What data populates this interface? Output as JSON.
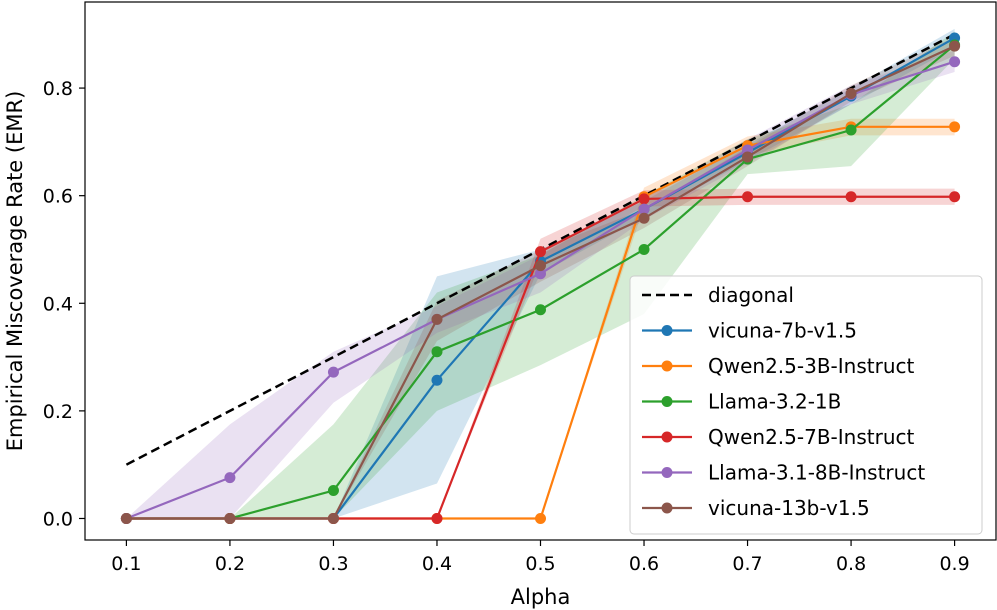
{
  "chart_data": {
    "type": "line",
    "title": "",
    "xlabel": "Alpha",
    "ylabel": "Empirical Miscoverage Rate (EMR)",
    "xlim": [
      0.06,
      0.94
    ],
    "ylim": [
      -0.04,
      0.96
    ],
    "x": [
      0.1,
      0.2,
      0.3,
      0.4,
      0.5,
      0.6,
      0.7,
      0.8,
      0.9
    ],
    "xticks": [
      "0.1",
      "0.2",
      "0.3",
      "0.4",
      "0.5",
      "0.6",
      "0.7",
      "0.8",
      "0.9"
    ],
    "yticks": [
      "0.0",
      "0.2",
      "0.4",
      "0.6",
      "0.8"
    ],
    "ytick_values": [
      0.0,
      0.2,
      0.4,
      0.6,
      0.8
    ],
    "grid": false,
    "legend_position": "lower-right",
    "diagonal": {
      "name": "diagonal",
      "x": [
        0.1,
        0.9
      ],
      "y": [
        0.1,
        0.9
      ],
      "color": "#000000",
      "style": "dashed"
    },
    "series": [
      {
        "name": "vicuna-7b-v1.5",
        "color": "#1f77b4",
        "values": [
          0.0,
          0.0,
          0.0,
          0.257,
          0.478,
          0.575,
          0.68,
          0.785,
          0.893
        ],
        "lower": [
          0.0,
          0.0,
          0.0,
          0.065,
          0.455,
          0.56,
          0.665,
          0.77,
          0.875
        ],
        "upper": [
          0.0,
          0.0,
          0.0,
          0.45,
          0.5,
          0.59,
          0.695,
          0.8,
          0.91
        ]
      },
      {
        "name": "Qwen2.5-3B-Instruct",
        "color": "#ff7f0e",
        "values": [
          0.0,
          0.0,
          0.0,
          0.0,
          0.0,
          0.598,
          0.693,
          0.728,
          0.728
        ],
        "lower": [
          0.0,
          0.0,
          0.0,
          0.0,
          0.0,
          0.58,
          0.675,
          0.712,
          0.712
        ],
        "upper": [
          0.0,
          0.0,
          0.0,
          0.0,
          0.0,
          0.615,
          0.71,
          0.743,
          0.743
        ]
      },
      {
        "name": "Llama-3.2-1B",
        "color": "#2ca02c",
        "values": [
          0.0,
          0.0,
          0.052,
          0.31,
          0.388,
          0.5,
          0.668,
          0.722,
          0.88
        ],
        "lower": [
          0.0,
          0.0,
          0.0,
          0.2,
          0.285,
          0.38,
          0.64,
          0.655,
          0.855
        ],
        "upper": [
          0.0,
          0.0,
          0.175,
          0.42,
          0.49,
          0.6,
          0.705,
          0.77,
          0.905
        ]
      },
      {
        "name": "Qwen2.5-7B-Instruct",
        "color": "#d62728",
        "values": [
          0.0,
          0.0,
          0.0,
          0.0,
          0.496,
          0.594,
          0.598,
          0.598,
          0.598
        ],
        "lower": [
          0.0,
          0.0,
          0.0,
          0.0,
          0.475,
          0.58,
          0.583,
          0.583,
          0.583
        ],
        "upper": [
          0.0,
          0.0,
          0.0,
          0.0,
          0.52,
          0.61,
          0.613,
          0.613,
          0.613
        ]
      },
      {
        "name": "Llama-3.1-8B-Instruct",
        "color": "#9467bd",
        "values": [
          0.0,
          0.076,
          0.272,
          0.37,
          0.455,
          0.575,
          0.685,
          0.788,
          0.849
        ],
        "lower": [
          0.0,
          0.0,
          0.215,
          0.345,
          0.42,
          0.555,
          0.66,
          0.77,
          0.83
        ],
        "upper": [
          0.0,
          0.175,
          0.31,
          0.395,
          0.49,
          0.595,
          0.705,
          0.805,
          0.87
        ]
      },
      {
        "name": "vicuna-13b-v1.5",
        "color": "#8c564b",
        "values": [
          0.0,
          0.0,
          0.0,
          0.37,
          0.47,
          0.558,
          0.672,
          0.79,
          0.878
        ],
        "lower": [
          0.0,
          0.0,
          0.0,
          0.33,
          0.44,
          0.54,
          0.655,
          0.775,
          0.86
        ],
        "upper": [
          0.0,
          0.0,
          0.0,
          0.405,
          0.5,
          0.575,
          0.69,
          0.805,
          0.895
        ]
      }
    ]
  }
}
